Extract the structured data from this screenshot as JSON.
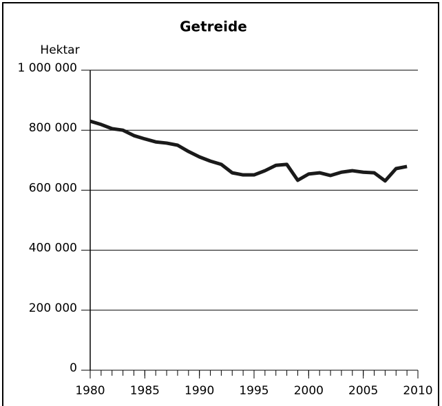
{
  "chart_data": {
    "type": "line",
    "title": "Getreide",
    "y_label": "Hektar",
    "x": [
      1980,
      1981,
      1982,
      1983,
      1984,
      1985,
      1986,
      1987,
      1988,
      1989,
      1990,
      1991,
      1992,
      1993,
      1994,
      1995,
      1996,
      1997,
      1998,
      1999,
      2000,
      2001,
      2002,
      2003,
      2004,
      2005,
      2006,
      2007,
      2008,
      2009
    ],
    "series": [
      {
        "name": "Getreide",
        "color": "#1a1a1a",
        "values": [
          830000,
          819000,
          805000,
          800000,
          782000,
          771000,
          761000,
          757000,
          750000,
          729000,
          711000,
          697000,
          686000,
          658000,
          651000,
          651000,
          665000,
          683000,
          686000,
          633000,
          654000,
          658000,
          649000,
          660000,
          665000,
          660000,
          658000,
          631000,
          672000,
          679000
        ]
      }
    ],
    "xlim": [
      1980,
      2010
    ],
    "xticks": [
      1980,
      1985,
      1990,
      1995,
      2000,
      2005,
      2010
    ],
    "ylim": [
      0,
      1000000
    ],
    "yticks": [
      0,
      {
        "value": 200000,
        "label": "200 000"
      },
      {
        "value": 400000,
        "label": "400 000"
      },
      {
        "value": 600000,
        "label": "600 000"
      },
      {
        "value": 800000,
        "label": "800 000"
      },
      {
        "value": 1000000,
        "label": "1 000 000"
      }
    ],
    "grid": true
  }
}
